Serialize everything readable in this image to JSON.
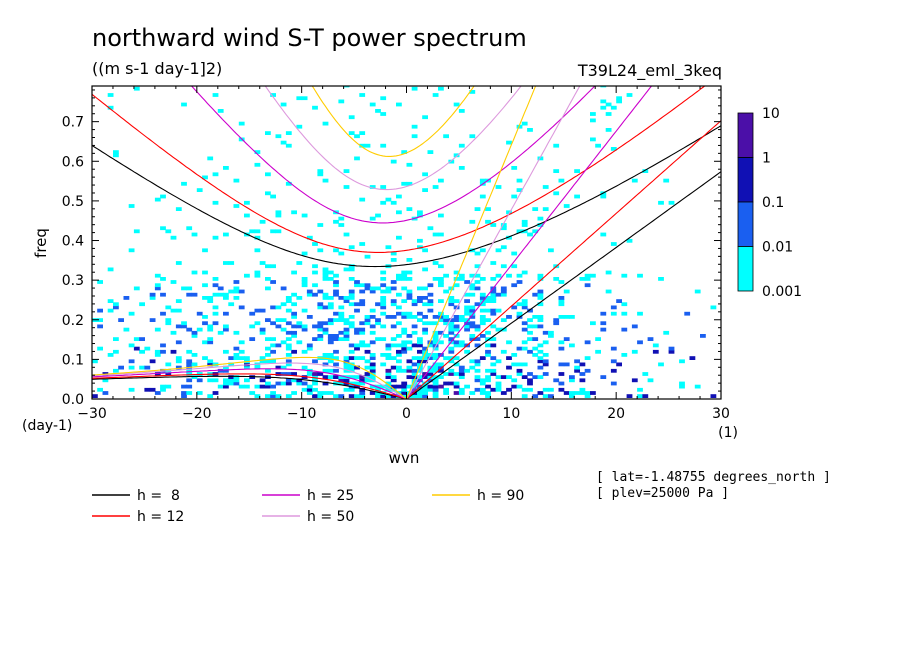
{
  "chart_data": {
    "type": "heatmap",
    "title": "northward wind S-T power spectrum",
    "units": "((m s-1 day-1]2)",
    "run_label": "T39L24_eml_3keq",
    "xlabel": "wvn",
    "ylabel": "freq",
    "x_unit": "(1)",
    "y_unit": "(day-1)",
    "xlim": [
      -30,
      30
    ],
    "ylim": [
      0,
      0.79
    ],
    "x_ticks": [
      "-30",
      "-20",
      "-10",
      "0",
      "10",
      "20",
      "30"
    ],
    "y_ticks": [
      "0.0",
      "0.1",
      "0.2",
      "0.3",
      "0.4",
      "0.5",
      "0.6",
      "0.7"
    ],
    "color_scale": {
      "labels": [
        "10",
        "1",
        "0.1",
        "0.01",
        "0.001"
      ],
      "colors": [
        "#4b0fa8",
        "#1010b4",
        "#1a5ff0",
        "#00ffff"
      ]
    },
    "legend": [
      {
        "label": "h =  8",
        "color": "#000000"
      },
      {
        "label": "h = 12",
        "color": "#ff0000"
      },
      {
        "label": "h = 25",
        "color": "#cc00cc"
      },
      {
        "label": "h = 50",
        "color": "#dd99dd"
      },
      {
        "label": "h = 90",
        "color": "#ffcc00"
      }
    ],
    "info": [
      "[ lat=-1.48755 degrees_north ]",
      "[ plev=25000 Pa ]"
    ]
  }
}
